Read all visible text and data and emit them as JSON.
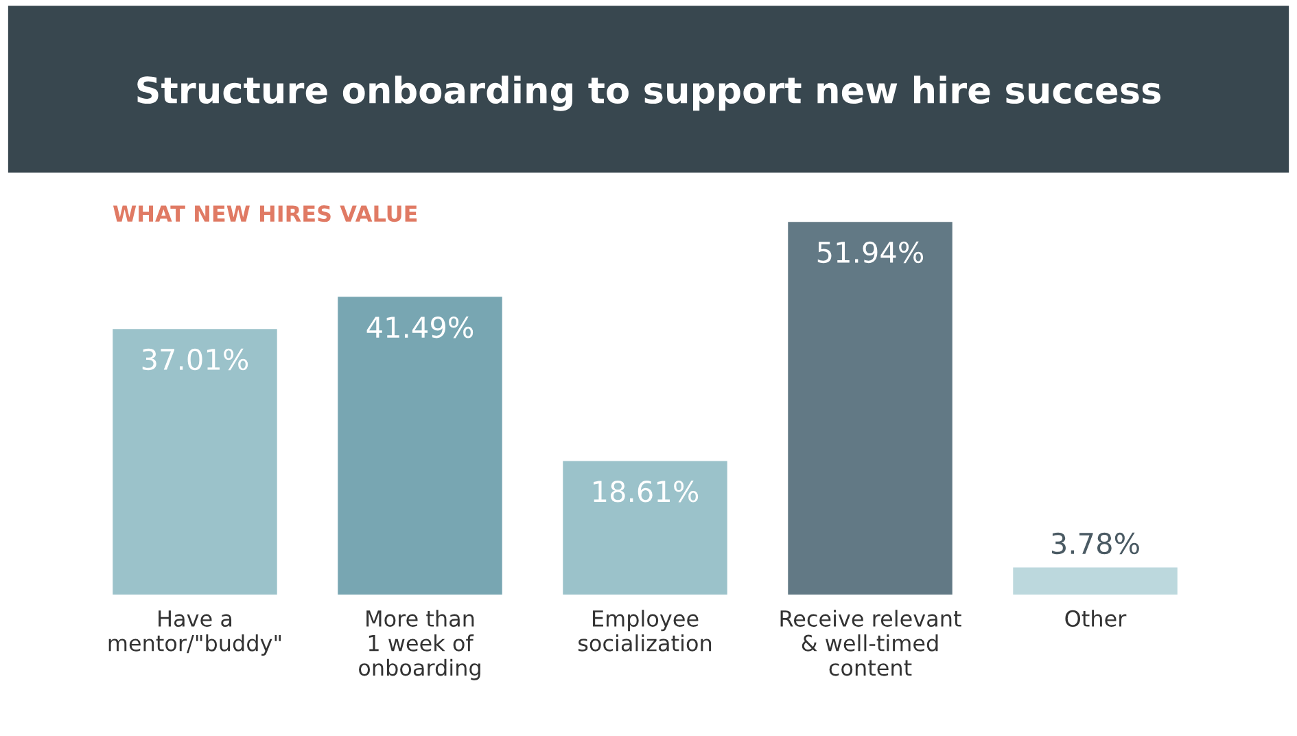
{
  "chart_data": {
    "type": "bar",
    "title": "Structure onboarding to support new hire success",
    "subtitle": "WHAT NEW HIRES VALUE",
    "categories": [
      "Have a\nmentor/\"buddy\"",
      "More than\n1 week of\nonboarding",
      "Employee\nsocialization",
      "Receive relevant\n& well-timed\ncontent",
      "Other"
    ],
    "values": [
      37.01,
      41.49,
      18.61,
      51.94,
      3.78
    ],
    "colors": [
      "#9bc2ca",
      "#78a6b2",
      "#9bc2ca",
      "#627985",
      "#bcd8dd"
    ],
    "value_labels": [
      "37.01%",
      "41.49%",
      "18.61%",
      "51.94%",
      "3.78%"
    ],
    "grid": false,
    "legend": false
  }
}
